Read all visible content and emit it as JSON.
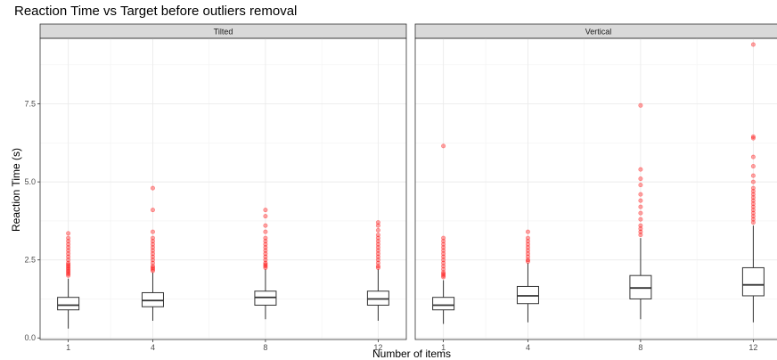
{
  "chart_data": {
    "type": "boxplot",
    "title": "Reaction Time vs Target before outliers removal",
    "xlabel": "Number of items",
    "ylabel": "Reaction Time (s)",
    "x_ticks": [
      "1",
      "4",
      "8",
      "12"
    ],
    "y_ticks": [
      "0.0",
      "2.5",
      "5.0",
      "7.5"
    ],
    "ylim": [
      -0.05,
      9.6
    ],
    "xlim": [
      0,
      13
    ],
    "grid": true,
    "outlier_color": "#ff0000",
    "panels": [
      {
        "name": "Tilted",
        "boxes": [
          {
            "x": 1,
            "min": 0.3,
            "q1": 0.9,
            "median": 1.05,
            "q3": 1.3,
            "max": 1.9,
            "outliers": [
              2.0,
              2.05,
              2.1,
              2.15,
              2.2,
              2.25,
              2.3,
              2.35,
              2.4,
              2.5,
              2.6,
              2.7,
              2.8,
              2.9,
              3.0,
              3.1,
              3.2,
              3.35
            ]
          },
          {
            "x": 4,
            "min": 0.55,
            "q1": 1.0,
            "median": 1.2,
            "q3": 1.45,
            "max": 2.1,
            "outliers": [
              2.15,
              2.2,
              2.25,
              2.3,
              2.4,
              2.5,
              2.6,
              2.7,
              2.8,
              2.9,
              3.0,
              3.1,
              3.2,
              3.4,
              4.1,
              4.8
            ]
          },
          {
            "x": 8,
            "min": 0.6,
            "q1": 1.05,
            "median": 1.3,
            "q3": 1.5,
            "max": 2.2,
            "outliers": [
              2.25,
              2.3,
              2.35,
              2.4,
              2.5,
              2.6,
              2.7,
              2.8,
              2.9,
              3.0,
              3.1,
              3.2,
              3.4,
              3.6,
              3.9,
              4.1
            ]
          },
          {
            "x": 12,
            "min": 0.55,
            "q1": 1.05,
            "median": 1.25,
            "q3": 1.5,
            "max": 2.2,
            "outliers": [
              2.25,
              2.3,
              2.4,
              2.5,
              2.6,
              2.7,
              2.8,
              2.9,
              3.0,
              3.1,
              3.2,
              3.3,
              3.45,
              3.6,
              3.7
            ]
          }
        ]
      },
      {
        "name": "Vertical",
        "boxes": [
          {
            "x": 1,
            "min": 0.45,
            "q1": 0.9,
            "median": 1.05,
            "q3": 1.3,
            "max": 1.85,
            "outliers": [
              1.95,
              2.0,
              2.05,
              2.1,
              2.2,
              2.3,
              2.4,
              2.5,
              2.6,
              2.7,
              2.8,
              2.9,
              3.0,
              3.1,
              3.2,
              6.15
            ]
          },
          {
            "x": 4,
            "min": 0.5,
            "q1": 1.1,
            "median": 1.35,
            "q3": 1.65,
            "max": 2.4,
            "outliers": [
              2.45,
              2.5,
              2.6,
              2.7,
              2.8,
              2.9,
              3.0,
              3.1,
              3.2,
              3.4
            ]
          },
          {
            "x": 8,
            "min": 0.6,
            "q1": 1.25,
            "median": 1.6,
            "q3": 2.0,
            "max": 3.2,
            "outliers": [
              3.3,
              3.4,
              3.5,
              3.6,
              3.8,
              4.0,
              4.2,
              4.4,
              4.6,
              4.9,
              5.1,
              5.4,
              7.45
            ]
          },
          {
            "x": 12,
            "min": 0.5,
            "q1": 1.35,
            "median": 1.7,
            "q3": 2.25,
            "max": 3.6,
            "outliers": [
              3.7,
              3.8,
              3.9,
              4.0,
              4.1,
              4.2,
              4.3,
              4.4,
              4.5,
              4.6,
              4.7,
              4.8,
              5.0,
              5.2,
              5.5,
              5.8,
              6.4,
              6.45,
              9.4
            ]
          }
        ]
      }
    ]
  }
}
